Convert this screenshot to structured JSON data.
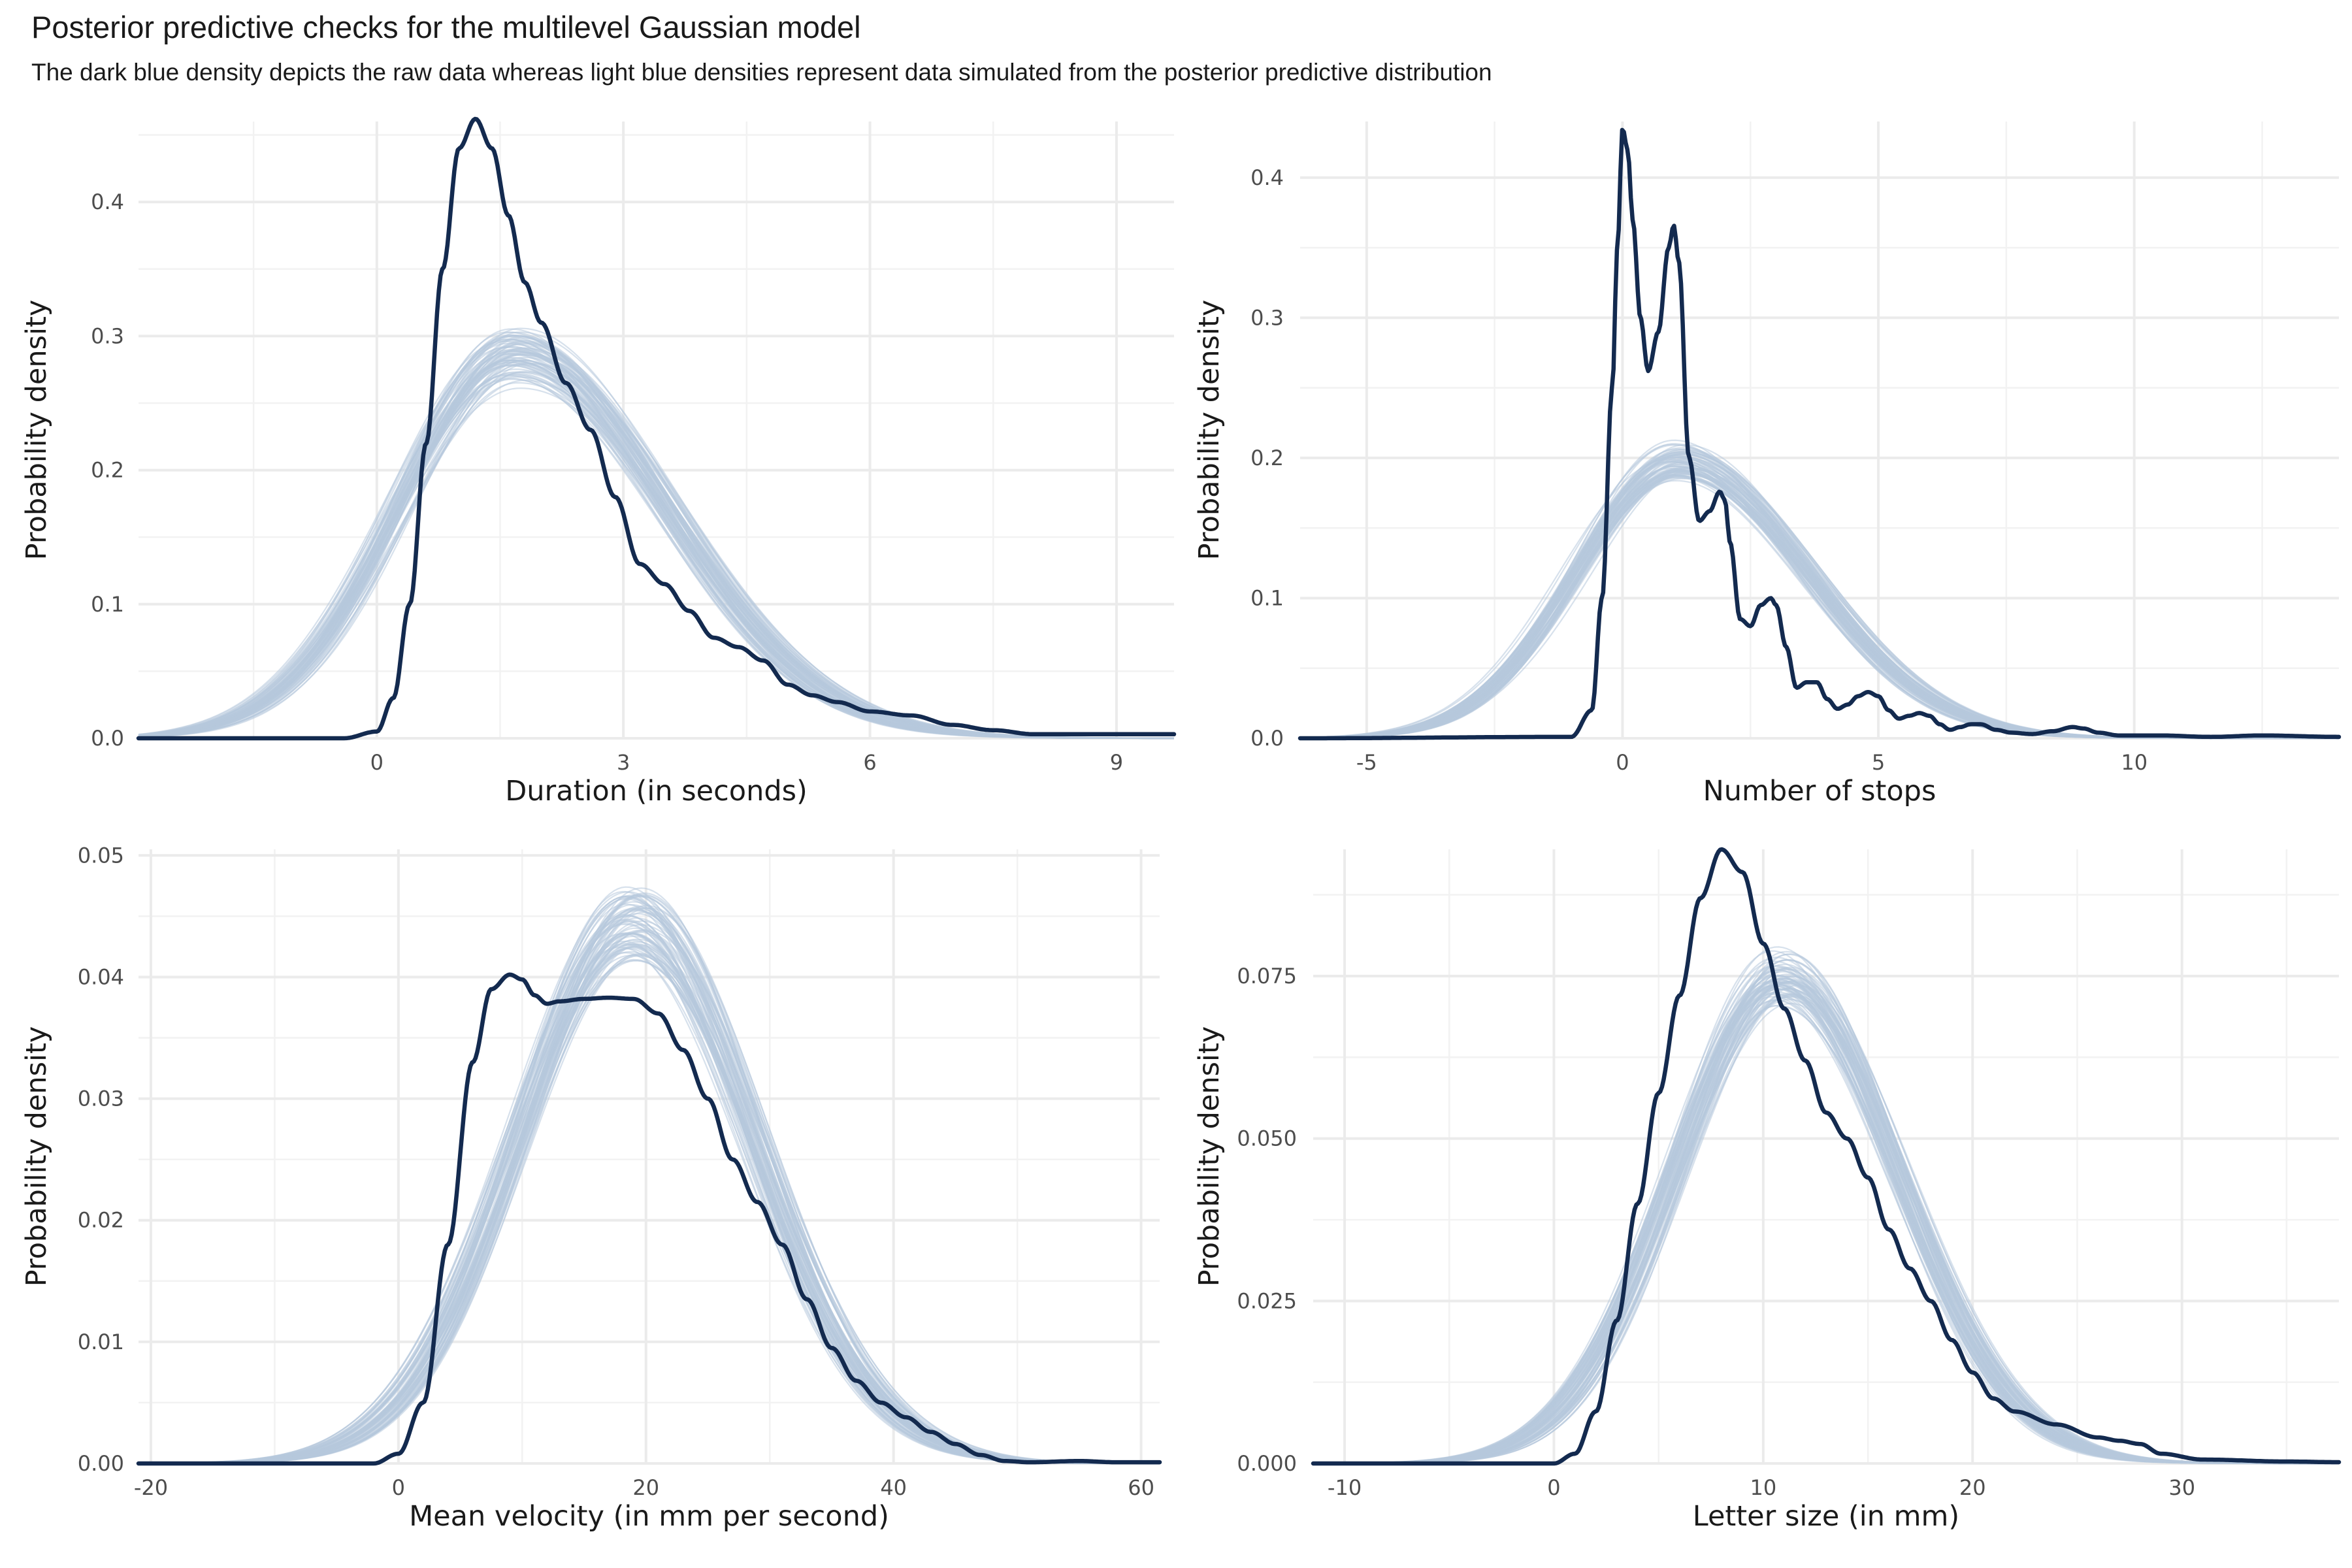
{
  "title": "Posterior predictive checks for the multilevel Gaussian model",
  "subtitle": "The dark blue density depicts the raw data whereas light blue densities represent data simulated from the posterior predictive distribution",
  "colors": {
    "raw": "#132a4f",
    "simulated": "#b7c9dd",
    "grid_major": "#ebebeb",
    "grid_minor": "#f2f2f2"
  },
  "chart_data": [
    {
      "type": "line",
      "xlabel": "Duration (in seconds)",
      "ylabel": "Probability density",
      "xlim": [
        -2.9,
        9.7
      ],
      "ylim": [
        0,
        0.46
      ],
      "xticks": [
        0,
        3,
        6,
        9
      ],
      "xtick_labels": [
        "0",
        "3",
        "6",
        "9"
      ],
      "yticks": [
        0,
        0.1,
        0.2,
        0.3,
        0.4
      ],
      "ytick_labels": [
        "0.0",
        "0.1",
        "0.2",
        "0.3",
        "0.4"
      ],
      "grid": true,
      "simulated": {
        "name": "posterior predictive",
        "draws": 80,
        "mu": 1.7,
        "sd": 1.42,
        "skew": 1.3,
        "peak": 0.285,
        "peak_spread": 0.018,
        "mu_spread": 0.12
      },
      "raw": {
        "name": "raw data",
        "x": [
          -2.9,
          -0.4,
          0.0,
          0.2,
          0.4,
          0.6,
          0.8,
          1.0,
          1.2,
          1.4,
          1.6,
          1.8,
          2.0,
          2.3,
          2.6,
          2.9,
          3.2,
          3.5,
          3.8,
          4.1,
          4.4,
          4.7,
          5.0,
          5.3,
          5.6,
          6.0,
          6.5,
          7.0,
          7.5,
          8.0,
          9.0,
          9.7
        ],
        "y": [
          0.0,
          0.0,
          0.005,
          0.03,
          0.1,
          0.22,
          0.35,
          0.44,
          0.462,
          0.44,
          0.39,
          0.34,
          0.31,
          0.265,
          0.23,
          0.18,
          0.13,
          0.115,
          0.095,
          0.075,
          0.068,
          0.058,
          0.04,
          0.032,
          0.027,
          0.02,
          0.017,
          0.01,
          0.006,
          0.003,
          0.003,
          0.003
        ]
      }
    },
    {
      "type": "line",
      "xlabel": "Number of stops",
      "ylabel": "Probability density",
      "xlim": [
        -6.3,
        14.0
      ],
      "ylim": [
        0,
        0.44
      ],
      "xticks": [
        -5,
        0,
        5,
        10
      ],
      "xtick_labels": [
        "-5",
        "0",
        "5",
        "10"
      ],
      "yticks": [
        0,
        0.1,
        0.2,
        0.3,
        0.4
      ],
      "ytick_labels": [
        "0.0",
        "0.1",
        "0.2",
        "0.3",
        "0.4"
      ],
      "grid": true,
      "simulated": {
        "name": "posterior predictive",
        "draws": 80,
        "mu": 1.1,
        "sd": 2.0,
        "skew": 1.25,
        "peak": 0.198,
        "peak_spread": 0.012,
        "mu_spread": 0.15
      },
      "raw": {
        "name": "raw data",
        "x": [
          -6.3,
          -1.0,
          -0.6,
          -0.4,
          -0.2,
          -0.1,
          0.0,
          0.1,
          0.2,
          0.35,
          0.5,
          0.7,
          0.9,
          1.0,
          1.1,
          1.3,
          1.5,
          1.7,
          1.9,
          2.0,
          2.1,
          2.3,
          2.5,
          2.7,
          2.9,
          3.0,
          3.2,
          3.4,
          3.6,
          3.8,
          4.0,
          4.2,
          4.4,
          4.6,
          4.8,
          5.0,
          5.2,
          5.4,
          5.6,
          5.8,
          6.0,
          6.2,
          6.4,
          6.6,
          6.8,
          7.0,
          7.3,
          7.6,
          8.0,
          8.4,
          8.8,
          9.0,
          9.3,
          9.7,
          10.5,
          11.5,
          12.5,
          14.0
        ],
        "y": [
          0.0,
          0.001,
          0.02,
          0.1,
          0.25,
          0.35,
          0.435,
          0.42,
          0.37,
          0.3,
          0.262,
          0.29,
          0.35,
          0.366,
          0.34,
          0.2,
          0.155,
          0.162,
          0.176,
          0.17,
          0.14,
          0.085,
          0.08,
          0.095,
          0.1,
          0.095,
          0.065,
          0.036,
          0.04,
          0.04,
          0.028,
          0.021,
          0.024,
          0.03,
          0.033,
          0.03,
          0.02,
          0.014,
          0.016,
          0.018,
          0.016,
          0.01,
          0.006,
          0.008,
          0.01,
          0.01,
          0.006,
          0.004,
          0.003,
          0.005,
          0.008,
          0.007,
          0.004,
          0.002,
          0.002,
          0.001,
          0.002,
          0.001
        ]
      }
    },
    {
      "type": "line",
      "xlabel": "Mean velocity (in mm per second)",
      "ylabel": "Probability density",
      "xlim": [
        -21,
        61.5
      ],
      "ylim": [
        0,
        0.0505
      ],
      "xticks": [
        -20,
        0,
        20,
        40,
        60
      ],
      "xtick_labels": [
        "-20",
        "0",
        "20",
        "40",
        "60"
      ],
      "yticks": [
        0,
        0.01,
        0.02,
        0.03,
        0.04,
        0.05
      ],
      "ytick_labels": [
        "0.00",
        "0.01",
        "0.02",
        "0.03",
        "0.04",
        "0.05"
      ],
      "grid": true,
      "simulated": {
        "name": "posterior predictive",
        "draws": 80,
        "mu": 19.0,
        "sd": 9.3,
        "skew": 1.05,
        "peak": 0.0445,
        "peak_spread": 0.0025,
        "mu_spread": 0.9
      },
      "raw": {
        "name": "raw data",
        "x": [
          -21,
          -2,
          0,
          2,
          4,
          6,
          7.5,
          9,
          10,
          11,
          12,
          13,
          15,
          17,
          19,
          21,
          23,
          25,
          27,
          29,
          31,
          33,
          35,
          37,
          39,
          41,
          43,
          45,
          47,
          49,
          51,
          55,
          58,
          61.5
        ],
        "y": [
          0.0,
          0.0,
          0.0008,
          0.005,
          0.018,
          0.033,
          0.039,
          0.0402,
          0.0398,
          0.0385,
          0.0378,
          0.038,
          0.0382,
          0.0383,
          0.0382,
          0.037,
          0.034,
          0.03,
          0.025,
          0.0215,
          0.018,
          0.0135,
          0.0095,
          0.0068,
          0.005,
          0.0038,
          0.0026,
          0.0016,
          0.0007,
          0.0002,
          0.0001,
          0.0002,
          0.0001,
          0.0001
        ]
      }
    },
    {
      "type": "line",
      "xlabel": "Letter size (in mm)",
      "ylabel": "Probability density",
      "xlim": [
        -11.5,
        37.5
      ],
      "ylim": [
        0,
        0.0945
      ],
      "xticks": [
        -10,
        0,
        10,
        20,
        30
      ],
      "xtick_labels": [
        "-10",
        "0",
        "10",
        "20",
        "30"
      ],
      "yticks": [
        0,
        0.025,
        0.05,
        0.075
      ],
      "ytick_labels": [
        "0.000",
        "0.025",
        "0.050",
        "0.075"
      ],
      "grid": true,
      "simulated": {
        "name": "posterior predictive",
        "draws": 80,
        "mu": 10.9,
        "sd": 5.1,
        "skew": 1.08,
        "peak": 0.0745,
        "peak_spread": 0.0035,
        "mu_spread": 0.45
      },
      "raw": {
        "name": "raw data",
        "x": [
          -11.5,
          0,
          1,
          2,
          3,
          4,
          5,
          6,
          7,
          8,
          9,
          10,
          11,
          12,
          13,
          14,
          15,
          16,
          17,
          18,
          19,
          20,
          21,
          22,
          24,
          26,
          27,
          28,
          29,
          31,
          35,
          37.5
        ],
        "y": [
          0.0,
          0.0,
          0.0015,
          0.008,
          0.022,
          0.04,
          0.057,
          0.072,
          0.087,
          0.0945,
          0.091,
          0.08,
          0.07,
          0.062,
          0.054,
          0.05,
          0.044,
          0.036,
          0.03,
          0.025,
          0.019,
          0.014,
          0.01,
          0.008,
          0.006,
          0.004,
          0.0035,
          0.003,
          0.0015,
          0.0006,
          0.0003,
          0.0002
        ]
      }
    }
  ]
}
